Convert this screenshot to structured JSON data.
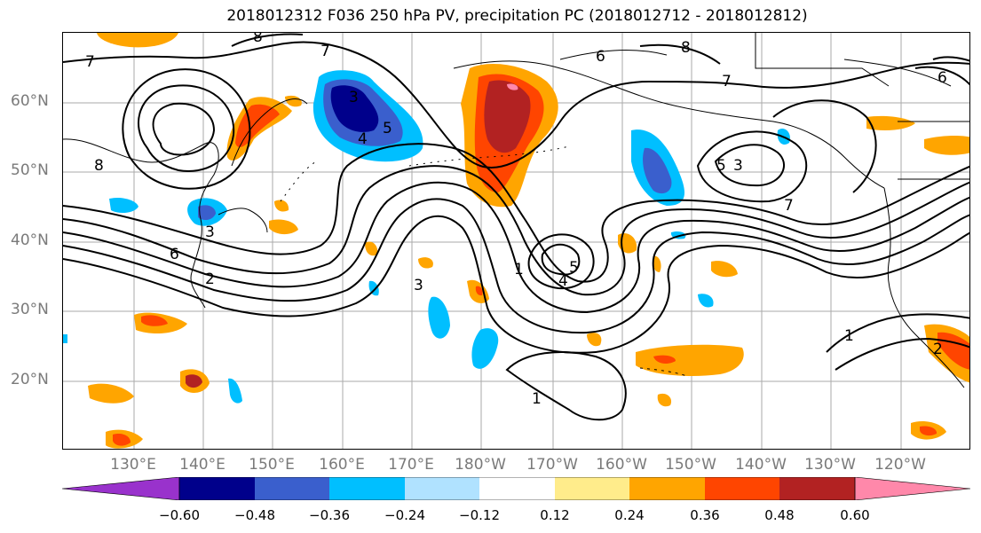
{
  "title": "2018012312 F036 250 hPa PV, precipitation PC (2018012712 - 2018012812)",
  "lat_labels": [
    "60°N",
    "50°N",
    "40°N",
    "30°N",
    "20°N"
  ],
  "lon_labels": [
    "130°E",
    "140°E",
    "150°E",
    "160°E",
    "170°E",
    "180°W",
    "170°W",
    "160°W",
    "150°W",
    "140°W",
    "130°W",
    "120°W"
  ],
  "colorbar": {
    "ticks": [
      "−0.60",
      "−0.48",
      "−0.36",
      "−0.24",
      "−0.12",
      "0.12",
      "0.24",
      "0.36",
      "0.48",
      "0.60"
    ],
    "colors": [
      "#9932cc",
      "#00008b",
      "#3a5fcd",
      "#00bfff",
      "#b0e2ff",
      "#ffffff",
      "#ffec8b",
      "#ffa500",
      "#ff4500",
      "#b22222",
      "#ff88aa"
    ]
  },
  "contour_labels": [
    "7",
    "8",
    "6",
    "5",
    "4",
    "3",
    "2",
    "1"
  ],
  "colors": {
    "contour": "#000000",
    "coast": "#000000",
    "grid": "#aaaaaa",
    "axis_text": "#7a7a7a"
  }
}
